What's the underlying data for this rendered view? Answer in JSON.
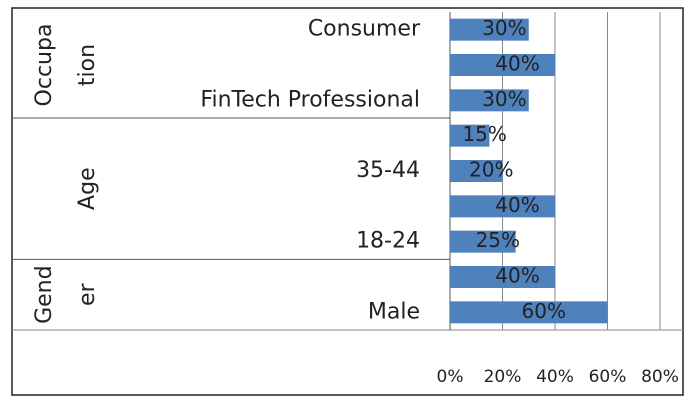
{
  "chart_data": {
    "type": "bar",
    "orientation": "horizontal",
    "categories": [
      "Consumer",
      null,
      "FinTech Professional",
      null,
      "35-44",
      null,
      "18-24",
      null,
      "Male"
    ],
    "groups": [
      {
        "name": [
          "Occupa",
          "tion"
        ],
        "count": 3
      },
      {
        "name": [
          "Age"
        ],
        "count": 4
      },
      {
        "name": [
          "Gend",
          "er"
        ],
        "count": 2
      }
    ],
    "values": [
      30,
      40,
      30,
      15,
      20,
      40,
      25,
      40,
      60
    ],
    "value_labels": [
      "30%",
      "40%",
      "30%",
      "15%",
      "20%",
      "40%",
      "25%",
      "40%",
      "60%"
    ],
    "color": "#4f81bd",
    "xlim": [
      0,
      80
    ],
    "xticks": [
      {
        "value": 0,
        "label": "0%"
      },
      {
        "value": 20,
        "label": "20%"
      },
      {
        "value": 40,
        "label": "40%"
      },
      {
        "value": 60,
        "label": "60%"
      },
      {
        "value": 80,
        "label": "80%"
      }
    ],
    "grid": true
  }
}
